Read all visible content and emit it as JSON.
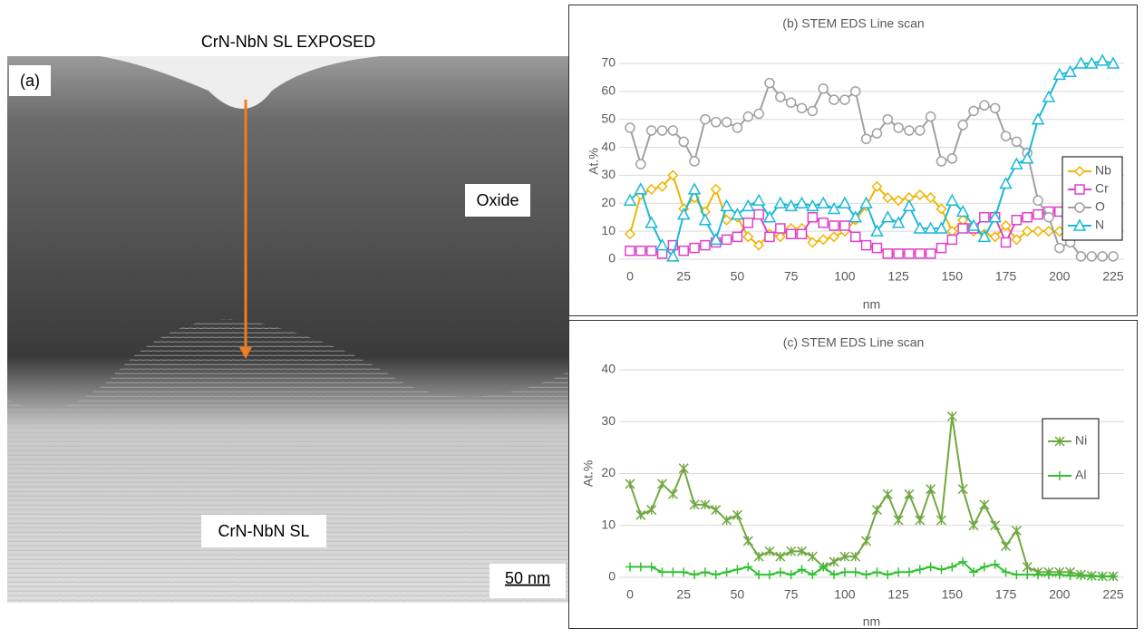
{
  "panel_a": {
    "title": "CrN-NbN SL EXPOSED",
    "label": "(a)",
    "annotations": [
      "Oxide",
      "CrN-NbN SL"
    ],
    "scale_bar": "50 nm"
  },
  "chart_data": [
    {
      "type": "line",
      "title": "(b) STEM EDS Line scan",
      "x_label": "nm",
      "y_label": "At.%",
      "x": [
        0,
        5,
        10,
        15,
        20,
        25,
        30,
        35,
        40,
        45,
        50,
        55,
        60,
        65,
        70,
        75,
        80,
        85,
        90,
        95,
        100,
        105,
        110,
        115,
        120,
        125,
        130,
        135,
        140,
        145,
        150,
        155,
        160,
        165,
        170,
        175,
        180,
        185,
        190,
        195,
        200,
        205,
        210,
        215,
        220,
        225
      ],
      "series": [
        {
          "name": "Nb",
          "color": "#f0b400",
          "marker": "diamond",
          "values": [
            9,
            23,
            25,
            26,
            30,
            18,
            22,
            17,
            25,
            14,
            15,
            8,
            5,
            9,
            8,
            11,
            11,
            6,
            7,
            8,
            10,
            14,
            19,
            26,
            22,
            21,
            22,
            23,
            22,
            18,
            10,
            14,
            10,
            9,
            8,
            12,
            7,
            10,
            10,
            10,
            10,
            10,
            10,
            11,
            11,
            11
          ]
        },
        {
          "name": "Cr",
          "color": "#e040c8",
          "marker": "square",
          "values": [
            3,
            3,
            3,
            2,
            5,
            3,
            4,
            5,
            6,
            7,
            8,
            13,
            16,
            8,
            11,
            9,
            9,
            15,
            13,
            12,
            12,
            8,
            5,
            4,
            2,
            2,
            2,
            2,
            2,
            4,
            7,
            11,
            11,
            15,
            15,
            6,
            14,
            15,
            16,
            17,
            17,
            18,
            20,
            17,
            18,
            18
          ]
        },
        {
          "name": "O",
          "color": "#a0a0a0",
          "marker": "circle",
          "values": [
            47,
            34,
            46,
            46,
            46,
            42,
            35,
            50,
            49,
            49,
            47,
            51,
            52,
            63,
            58,
            56,
            54,
            53,
            61,
            57,
            57,
            60,
            43,
            45,
            50,
            47,
            46,
            46,
            51,
            35,
            36,
            48,
            53,
            55,
            54,
            44,
            42,
            38,
            21,
            15,
            4,
            6,
            1,
            1,
            1,
            1
          ]
        },
        {
          "name": "N",
          "color": "#1ab8d8",
          "marker": "triangle",
          "values": [
            21,
            25,
            13,
            5,
            1,
            16,
            25,
            14,
            7,
            19,
            16,
            19,
            21,
            15,
            20,
            19,
            20,
            19,
            20,
            18,
            20,
            15,
            20,
            10,
            15,
            13,
            19,
            11,
            11,
            11,
            21,
            17,
            12,
            8,
            15,
            27,
            34,
            36,
            50,
            58,
            66,
            67,
            70,
            70,
            71,
            70
          ]
        }
      ],
      "xlim": [
        0,
        225
      ],
      "xticks": [
        0,
        25,
        50,
        75,
        100,
        125,
        150,
        175,
        200,
        225
      ],
      "ylim": [
        0,
        70
      ],
      "yticks": [
        0,
        10,
        20,
        30,
        40,
        50,
        60,
        70
      ],
      "grid": true,
      "legend": "right"
    },
    {
      "type": "line",
      "title": "(c) STEM EDS Line scan",
      "x_label": "nm",
      "y_label": "At.%",
      "x": [
        0,
        5,
        10,
        15,
        20,
        25,
        30,
        35,
        40,
        45,
        50,
        55,
        60,
        65,
        70,
        75,
        80,
        85,
        90,
        95,
        100,
        105,
        110,
        115,
        120,
        125,
        130,
        135,
        140,
        145,
        150,
        155,
        160,
        165,
        170,
        175,
        180,
        185,
        190,
        195,
        200,
        205,
        210,
        215,
        220,
        225
      ],
      "series": [
        {
          "name": "Ni",
          "color": "#70a840",
          "marker": "star",
          "values": [
            18,
            12,
            13,
            18,
            16,
            21,
            14,
            14,
            13,
            11,
            12,
            7,
            4,
            5,
            4,
            5,
            5,
            4,
            2,
            3,
            4,
            4,
            7,
            13,
            16,
            11,
            16,
            11,
            17,
            11,
            31,
            17,
            10,
            14,
            10,
            6,
            9,
            2,
            1,
            1,
            1,
            1,
            0.5,
            0.3,
            0.2,
            0.2
          ]
        },
        {
          "name": "Al",
          "color": "#30c030",
          "marker": "plus",
          "values": [
            2,
            2,
            2,
            1,
            1,
            1,
            0.5,
            1,
            0.5,
            1,
            1.5,
            2,
            0.5,
            0.5,
            1,
            0.5,
            1.5,
            0.5,
            2,
            0.5,
            1,
            1,
            0.5,
            1,
            0.5,
            1,
            1,
            1.5,
            2,
            1.5,
            2,
            3,
            1,
            2,
            2.5,
            1,
            0.5,
            0.5,
            0.5,
            0.5,
            0.5,
            0.3,
            0.3,
            0.2,
            0.2,
            0.2
          ]
        }
      ],
      "xlim": [
        0,
        225
      ],
      "xticks": [
        0,
        25,
        50,
        75,
        100,
        125,
        150,
        175,
        200,
        225
      ],
      "ylim": [
        0,
        40
      ],
      "yticks": [
        0,
        10,
        20,
        30,
        40
      ],
      "grid": true,
      "legend": "right"
    }
  ]
}
